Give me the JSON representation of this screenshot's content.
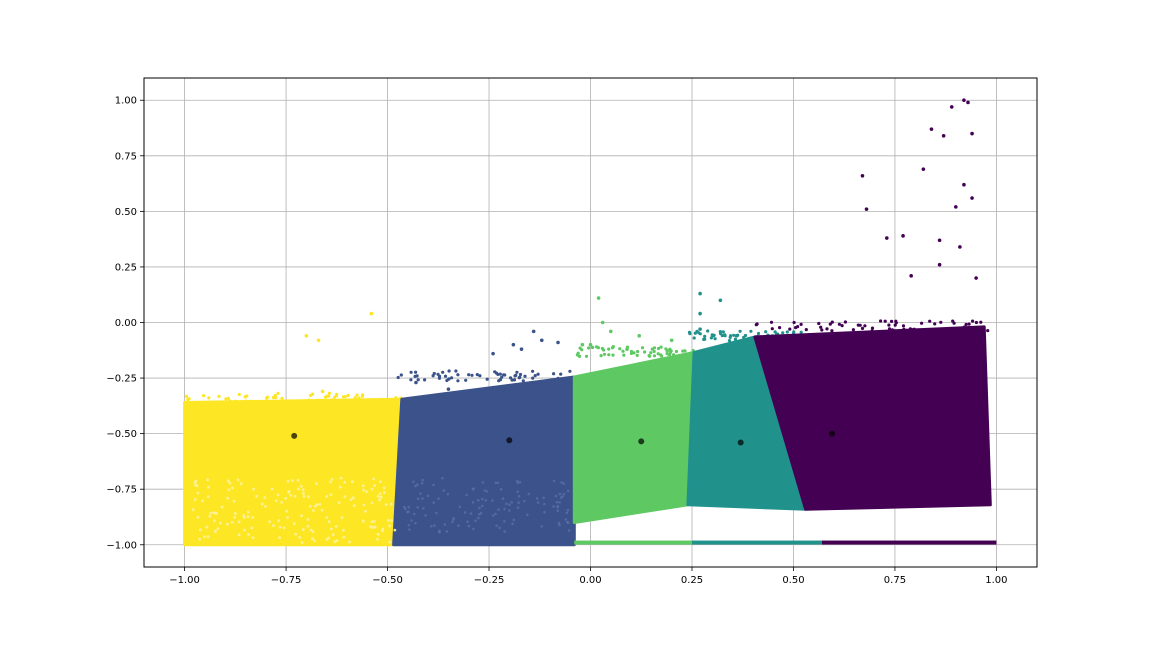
{
  "chart_data": {
    "type": "scatter",
    "title": "",
    "xlabel": "",
    "ylabel": "",
    "xlim": [
      -1.1,
      1.1
    ],
    "ylim": [
      -1.1,
      1.1
    ],
    "grid": true,
    "legend": "none",
    "x_ticks": [
      "−1.00",
      "−0.75",
      "−0.50",
      "−0.25",
      "0.00",
      "0.25",
      "0.50",
      "0.75",
      "1.00"
    ],
    "x_tick_values": [
      -1.0,
      -0.75,
      -0.5,
      -0.25,
      0.0,
      0.25,
      0.5,
      0.75,
      1.0
    ],
    "y_ticks": [
      "−1.00",
      "−0.75",
      "−0.50",
      "−0.25",
      "0.00",
      "0.25",
      "0.50",
      "0.75",
      "1.00"
    ],
    "y_tick_values": [
      -1.0,
      -0.75,
      -0.5,
      -0.25,
      0.0,
      0.25,
      0.5,
      0.75,
      1.0
    ],
    "clusters": [
      {
        "color": "#fde725",
        "region": [
          [
            -1.0,
            -0.36
          ],
          [
            -0.465,
            -0.345
          ],
          [
            -0.485,
            -1.0
          ],
          [
            -1.0,
            -1.0
          ]
        ],
        "centroid": [
          -0.73,
          -0.51
        ],
        "outliers": [
          [
            -0.54,
            0.04
          ],
          [
            -0.7,
            -0.06
          ],
          [
            -0.67,
            -0.08
          ],
          [
            -0.66,
            -0.31
          ],
          [
            -0.58,
            -0.34
          ]
        ]
      },
      {
        "color": "#3b528b",
        "region": [
          [
            -0.465,
            -0.345
          ],
          [
            -0.04,
            -0.245
          ],
          [
            -0.04,
            -1.0
          ],
          [
            -0.485,
            -1.0
          ]
        ],
        "centroid": [
          -0.2,
          -0.53
        ],
        "outliers": [
          [
            -0.14,
            -0.04
          ],
          [
            -0.12,
            -0.08
          ],
          [
            -0.19,
            -0.1
          ],
          [
            -0.24,
            -0.14
          ],
          [
            -0.17,
            -0.12
          ],
          [
            -0.08,
            -0.09
          ],
          [
            -0.43,
            -0.27
          ],
          [
            -0.35,
            -0.3
          ]
        ]
      },
      {
        "color": "#5ec962",
        "region": [
          [
            -0.04,
            -0.245
          ],
          [
            0.255,
            -0.135
          ],
          [
            0.24,
            -0.82
          ],
          [
            -0.04,
            -0.9
          ]
        ],
        "centroid": [
          0.125,
          -0.535
        ],
        "outliers": [
          [
            0.02,
            0.11
          ],
          [
            0.03,
            0.0
          ],
          [
            0.05,
            -0.04
          ],
          [
            0.0,
            -0.1
          ],
          [
            0.12,
            -0.06
          ],
          [
            0.09,
            -0.12
          ],
          [
            0.2,
            -0.08
          ],
          [
            -0.02,
            -0.1
          ]
        ]
      },
      {
        "color": "#21918c",
        "region": [
          [
            0.255,
            -0.135
          ],
          [
            0.405,
            -0.065
          ],
          [
            0.53,
            -0.84
          ],
          [
            0.24,
            -0.82
          ]
        ],
        "centroid": [
          0.37,
          -0.54
        ],
        "outliers": [
          [
            0.27,
            0.13
          ],
          [
            0.32,
            0.1
          ],
          [
            0.27,
            0.04
          ],
          [
            0.36,
            -0.06
          ],
          [
            0.27,
            -0.03
          ]
        ]
      },
      {
        "color": "#440154",
        "region": [
          [
            0.405,
            -0.065
          ],
          [
            0.97,
            -0.02
          ],
          [
            0.985,
            -0.82
          ],
          [
            0.53,
            -0.84
          ]
        ],
        "centroid": [
          0.595,
          -0.5
        ],
        "outliers": [
          [
            0.92,
            1.0
          ],
          [
            0.93,
            0.99
          ],
          [
            0.89,
            0.97
          ],
          [
            0.84,
            0.87
          ],
          [
            0.87,
            0.84
          ],
          [
            0.94,
            0.85
          ],
          [
            0.82,
            0.69
          ],
          [
            0.67,
            0.66
          ],
          [
            0.92,
            0.62
          ],
          [
            0.68,
            0.51
          ],
          [
            0.9,
            0.52
          ],
          [
            0.94,
            0.56
          ],
          [
            0.77,
            0.39
          ],
          [
            0.73,
            0.38
          ],
          [
            0.86,
            0.37
          ],
          [
            0.91,
            0.34
          ],
          [
            0.79,
            0.21
          ],
          [
            0.86,
            0.26
          ],
          [
            0.95,
            0.2
          ]
        ]
      }
    ],
    "bottom_band": [
      {
        "color": "#5ec962",
        "x0": -0.04,
        "x1": 0.25,
        "y": -0.99
      },
      {
        "color": "#21918c",
        "x0": 0.25,
        "x1": 0.57,
        "y": -0.99
      },
      {
        "color": "#440154",
        "x0": 0.57,
        "x1": 1.0,
        "y": -0.99
      }
    ]
  }
}
